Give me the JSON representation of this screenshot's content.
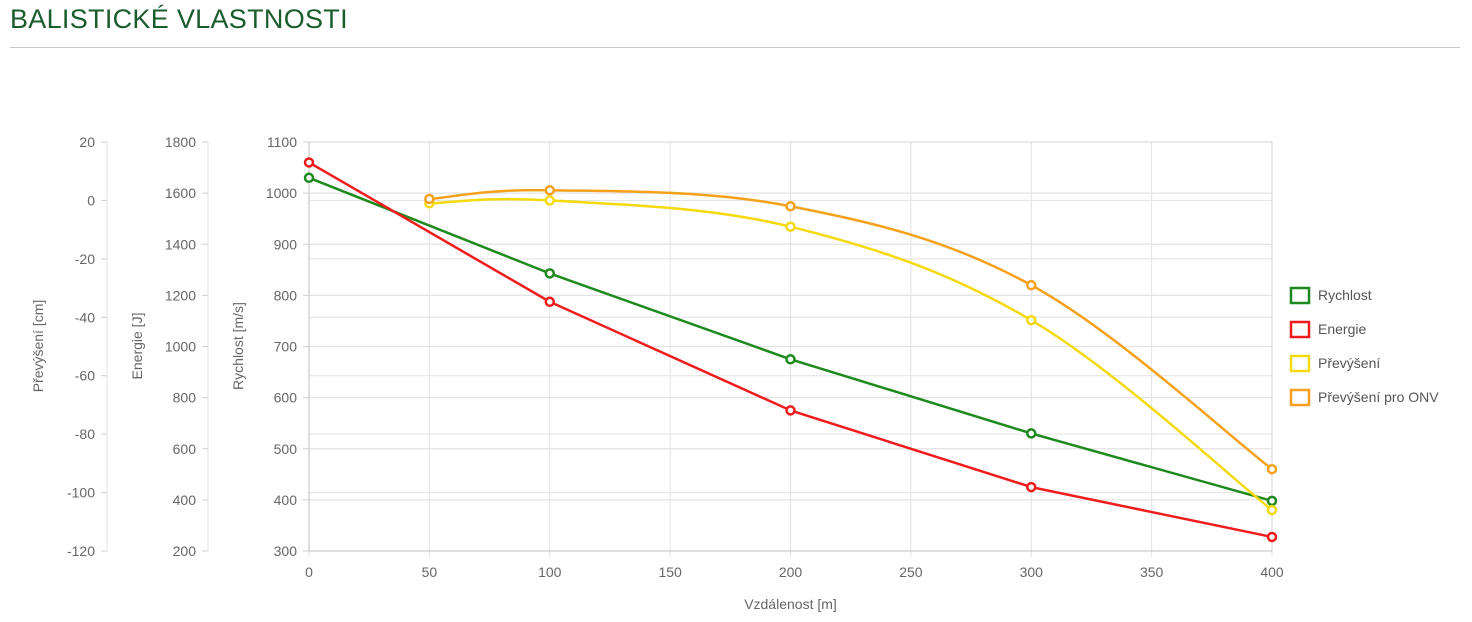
{
  "page": {
    "title": "BALISTICKÉ VLASTNOSTI"
  },
  "chart_data": {
    "type": "line",
    "xlabel": "Vzdálenost [m]",
    "xlim": [
      0,
      400
    ],
    "x_ticks": [
      0,
      50,
      100,
      150,
      200,
      250,
      300,
      350,
      400
    ],
    "y_axes": [
      {
        "id": "rychlost",
        "label": "Rychlost [m/s]",
        "range": [
          300,
          1100
        ],
        "ticks": [
          300,
          400,
          500,
          600,
          700,
          800,
          900,
          1000,
          1100
        ]
      },
      {
        "id": "energie",
        "label": "Energie [J]",
        "range": [
          200,
          1800
        ],
        "ticks": [
          200,
          400,
          600,
          800,
          1000,
          1200,
          1400,
          1600,
          1800
        ]
      },
      {
        "id": "prevyseni",
        "label": "Převýšení [cm]",
        "range": [
          -120,
          20
        ],
        "ticks": [
          -120,
          -100,
          -80,
          -60,
          -40,
          -20,
          0,
          20
        ]
      }
    ],
    "grid": true,
    "legend_position": "right",
    "series": [
      {
        "name": "Rychlost",
        "axis": "rychlost",
        "color": "#1e8a1e",
        "x": [
          0,
          100,
          200,
          300,
          400
        ],
        "y": [
          1030,
          843,
          675,
          530,
          398
        ]
      },
      {
        "name": "Energie",
        "axis": "energie",
        "color": "#ee1c1c",
        "x": [
          0,
          100,
          200,
          300,
          400
        ],
        "y": [
          1720,
          1175,
          750,
          450,
          255
        ]
      },
      {
        "name": "Převýšení",
        "axis": "prevyseni",
        "color": "#f5d90f",
        "x": [
          50,
          100,
          200,
          300,
          400
        ],
        "y": [
          -1,
          0,
          -9,
          -41,
          -106
        ]
      },
      {
        "name": "Převýšení pro ONV",
        "axis": "prevyseni",
        "color": "#f5a11b",
        "x": [
          50,
          100,
          200,
          300,
          400
        ],
        "y": [
          0.5,
          3.5,
          -2,
          -29,
          -92
        ]
      }
    ]
  }
}
